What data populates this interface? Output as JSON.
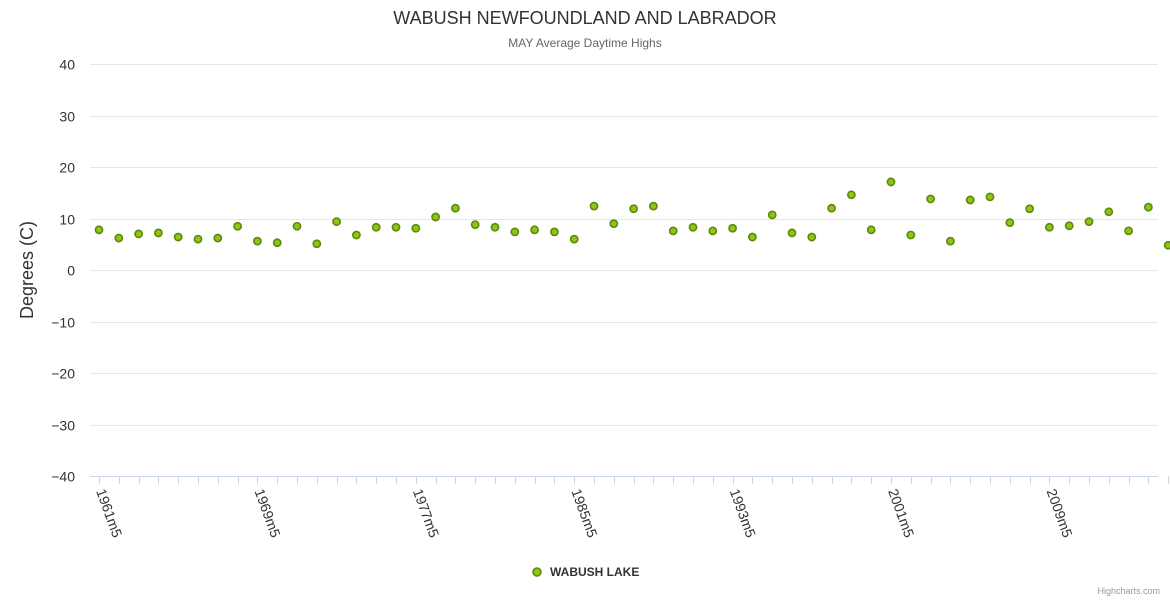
{
  "colors": {
    "point_fill": "#90c418",
    "point_stroke": "#5a8a0a"
  },
  "credits": "Highcharts.com",
  "chart_data": {
    "type": "scatter",
    "title": "WABUSH NEWFOUNDLAND AND LABRADOR",
    "subtitle": "MAY Average Daytime Highs",
    "xlabel": "",
    "ylabel": "Degrees (C)",
    "ylim": [
      -40,
      40
    ],
    "yticks": [
      "40",
      "30",
      "20",
      "10",
      "0",
      "−10",
      "−20",
      "−30",
      "−40"
    ],
    "xtick_labels": [
      "1961m5",
      "1969m5",
      "1977m5",
      "1985m5",
      "1993m5",
      "2001m5",
      "2009m5"
    ],
    "legend": [
      "WABUSH LAKE"
    ],
    "series": [
      {
        "name": "WABUSH LAKE",
        "x": [
          1961,
          1962,
          1963,
          1964,
          1965,
          1966,
          1967,
          1968,
          1969,
          1970,
          1971,
          1972,
          1973,
          1974,
          1975,
          1976,
          1977,
          1978,
          1979,
          1980,
          1981,
          1982,
          1983,
          1984,
          1985,
          1986,
          1987,
          1988,
          1989,
          1990,
          1991,
          1992,
          1993,
          1994,
          1995,
          1996,
          1997,
          1998,
          1999,
          2000,
          2001,
          2002,
          2003,
          2004,
          2005,
          2006,
          2007,
          2008,
          2009,
          2010,
          2011,
          2012,
          2013,
          2014,
          2015
        ],
        "values": [
          7.8,
          6.2,
          7.0,
          7.2,
          6.4,
          6.0,
          6.2,
          8.5,
          5.6,
          5.3,
          8.5,
          5.1,
          9.4,
          6.8,
          8.3,
          8.3,
          8.1,
          10.3,
          12.0,
          8.8,
          8.3,
          7.4,
          7.8,
          7.4,
          6.0,
          12.4,
          9.0,
          11.9,
          12.4,
          7.6,
          8.3,
          7.6,
          8.1,
          6.4,
          10.7,
          7.2,
          6.4,
          12.0,
          14.6,
          7.8,
          17.1,
          6.8,
          13.8,
          5.6,
          13.6,
          14.2,
          9.2,
          11.9,
          8.3,
          8.6,
          9.4,
          11.3,
          7.6,
          12.2,
          4.8
        ]
      }
    ]
  }
}
